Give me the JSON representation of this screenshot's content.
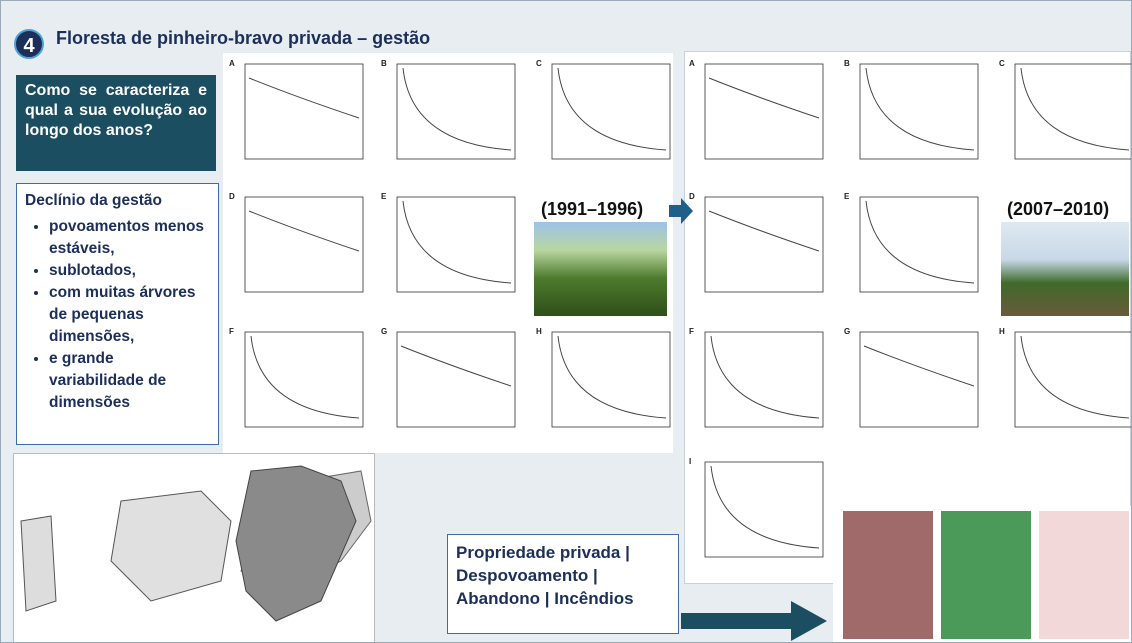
{
  "header": {
    "number": "4",
    "title": "Floresta de pinheiro-bravo privada – gestão"
  },
  "question": "Como se caracteriza e qual a sua evolução ao longo dos anos?",
  "decline": {
    "title": "Declínio da gestão",
    "items": [
      "povoamentos menos estáveis,",
      "sublotados,",
      "com muitas árvores de pequenas dimensões,",
      "e grande variabilidade de dimensões"
    ]
  },
  "figure_early": {
    "period": "(1991–1996)",
    "panels": [
      "A",
      "B",
      "C",
      "D",
      "E",
      "F",
      "G",
      "H"
    ]
  },
  "figure_late": {
    "period": "(2007–2010)",
    "panels": [
      "A",
      "B",
      "C",
      "D",
      "E",
      "F",
      "G",
      "H",
      "I"
    ]
  },
  "drivers": "Propriedade privada | Despovoamento | Abandono | Incêndios"
}
